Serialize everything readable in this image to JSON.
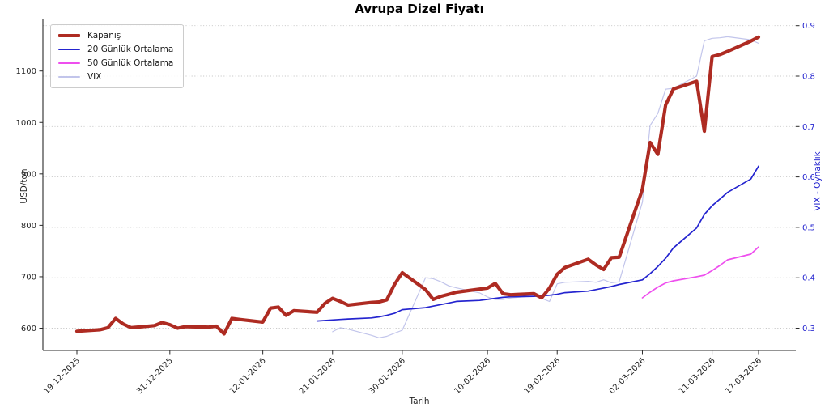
{
  "chart_data": {
    "type": "line",
    "title": "Avrupa Dizel Fiyatı",
    "xlabel": "Tarih",
    "ylabel_left": "USD/ton",
    "ylabel_right": "VIX - Oynaklık",
    "grid": "horizontal-dotted",
    "legend_position": "upper-left",
    "y_left_ticks": [
      600,
      700,
      800,
      900,
      1000,
      1100
    ],
    "y_right_ticks": [
      0.3,
      0.4,
      0.5,
      0.6,
      0.7,
      0.8,
      0.9
    ],
    "ylim_left": [
      560,
      1198
    ],
    "ylim_right": [
      0.255,
      0.912
    ],
    "x_tick_labels": [
      "19-12-2025",
      "31-12-2025",
      "12-01-2026",
      "21-01-2026",
      "30-01-2026",
      "10-02-2026",
      "19-02-2026",
      "02-03-2026",
      "11-03-2026",
      "17-03-2026"
    ],
    "colors": {
      "close": "#ae2b22",
      "ma20": "#2424cf",
      "ma50": "#ee4fee",
      "vix": "#8f96db",
      "right_axis_text": "#2323cf",
      "grid": "#c9c9c9",
      "spine": "#2a2a2a"
    },
    "series": [
      {
        "name": "Kapanış",
        "axis": "left",
        "color": "#ae2b22",
        "width": 4.2,
        "opacity": 1,
        "dates": [
          "19-12-2025",
          "22-12-2025",
          "23-12-2025",
          "24-12-2025",
          "25-12-2025",
          "26-12-2025",
          "29-12-2025",
          "30-12-2025",
          "31-12-2025",
          "01-01-2026",
          "02-01-2026",
          "05-01-2026",
          "06-01-2026",
          "07-01-2026",
          "08-01-2026",
          "09-01-2026",
          "12-01-2026",
          "13-01-2026",
          "14-01-2026",
          "15-01-2026",
          "16-01-2026",
          "19-01-2026",
          "20-01-2026",
          "21-01-2026",
          "22-01-2026",
          "23-01-2026",
          "26-01-2026",
          "27-01-2026",
          "28-01-2026",
          "29-01-2026",
          "30-01-2026",
          "02-02-2026",
          "03-02-2026",
          "04-02-2026",
          "05-02-2026",
          "06-02-2026",
          "09-02-2026",
          "10-02-2026",
          "11-02-2026",
          "12-02-2026",
          "13-02-2026",
          "16-02-2026",
          "17-02-2026",
          "18-02-2026",
          "19-02-2026",
          "20-02-2026",
          "23-02-2026",
          "24-02-2026",
          "25-02-2026",
          "26-02-2026",
          "27-02-2026",
          "02-03-2026",
          "03-03-2026",
          "04-03-2026",
          "05-03-2026",
          "06-03-2026",
          "09-03-2026",
          "10-03-2026",
          "11-03-2026",
          "12-03-2026",
          "13-03-2026",
          "16-03-2026",
          "17-03-2026"
        ],
        "values": [
          594,
          597,
          601,
          619,
          608,
          601,
          605,
          611,
          607,
          600,
          603,
          602,
          604,
          589,
          619,
          617,
          612,
          639,
          641,
          625,
          634,
          631,
          648,
          658,
          652,
          645,
          650,
          651,
          655,
          685,
          708,
          675,
          656,
          662,
          666,
          670,
          676,
          678,
          687,
          667,
          665,
          667,
          659,
          678,
          705,
          718,
          734,
          723,
          714,
          737,
          738,
          870,
          961,
          938,
          1034,
          1065,
          1080,
          983,
          1128,
          1132,
          1138,
          1158,
          1166
        ]
      },
      {
        "name": "20 Günlük Ortalama",
        "axis": "left",
        "color": "#2424cf",
        "width": 1.7,
        "opacity": 1,
        "dates": [
          "19-01-2026",
          "20-01-2026",
          "21-01-2026",
          "22-01-2026",
          "23-01-2026",
          "26-01-2026",
          "27-01-2026",
          "28-01-2026",
          "29-01-2026",
          "30-01-2026",
          "02-02-2026",
          "03-02-2026",
          "04-02-2026",
          "05-02-2026",
          "06-02-2026",
          "09-02-2026",
          "10-02-2026",
          "11-02-2026",
          "12-02-2026",
          "13-02-2026",
          "16-02-2026",
          "17-02-2026",
          "18-02-2026",
          "19-02-2026",
          "20-02-2026",
          "23-02-2026",
          "24-02-2026",
          "25-02-2026",
          "26-02-2026",
          "27-02-2026",
          "02-03-2026",
          "03-03-2026",
          "04-03-2026",
          "05-03-2026",
          "06-03-2026",
          "09-03-2026",
          "10-03-2026",
          "11-03-2026",
          "12-03-2026",
          "13-03-2026",
          "16-03-2026",
          "17-03-2026"
        ],
        "values": [
          614,
          615,
          616,
          617,
          618,
          620,
          622,
          625,
          629,
          636,
          640,
          643,
          646,
          649,
          652,
          654,
          656,
          658,
          660,
          661,
          662,
          663,
          664,
          666,
          669,
          672,
          675,
          678,
          681,
          685,
          694,
          706,
          720,
          736,
          756,
          795,
          821,
          838,
          851,
          864,
          890,
          915
        ]
      },
      {
        "name": "50 Günlük Ortalama",
        "axis": "left",
        "color": "#ee4fee",
        "width": 1.7,
        "opacity": 1,
        "dates": [
          "02-03-2026",
          "03-03-2026",
          "04-03-2026",
          "05-03-2026",
          "06-03-2026",
          "09-03-2026",
          "10-03-2026",
          "11-03-2026",
          "12-03-2026",
          "13-03-2026",
          "16-03-2026",
          "17-03-2026"
        ],
        "values": [
          659,
          670,
          680,
          688,
          692,
          700,
          703,
          712,
          722,
          733,
          744,
          758
        ]
      },
      {
        "name": "VIX",
        "axis": "right",
        "color": "#8f96db",
        "width": 1.2,
        "opacity": 0.55,
        "dates": [
          "21-01-2026",
          "22-01-2026",
          "23-01-2026",
          "26-01-2026",
          "27-01-2026",
          "28-01-2026",
          "29-01-2026",
          "30-01-2026",
          "02-02-2026",
          "03-02-2026",
          "04-02-2026",
          "05-02-2026",
          "06-02-2026",
          "09-02-2026",
          "10-02-2026",
          "11-02-2026",
          "12-02-2026",
          "13-02-2026",
          "16-02-2026",
          "17-02-2026",
          "18-02-2026",
          "19-02-2026",
          "20-02-2026",
          "23-02-2026",
          "24-02-2026",
          "25-02-2026",
          "26-02-2026",
          "27-02-2026",
          "02-03-2026",
          "03-03-2026",
          "04-03-2026",
          "05-03-2026",
          "06-03-2026",
          "09-03-2026",
          "10-03-2026",
          "11-03-2026",
          "12-03-2026",
          "13-03-2026",
          "16-03-2026",
          "17-03-2026"
        ],
        "values": [
          0.293,
          0.301,
          0.298,
          0.286,
          0.281,
          0.284,
          0.29,
          0.296,
          0.4,
          0.398,
          0.392,
          0.384,
          0.38,
          0.37,
          0.362,
          0.357,
          0.357,
          0.36,
          0.364,
          0.359,
          0.353,
          0.388,
          0.391,
          0.393,
          0.391,
          0.396,
          0.39,
          0.392,
          0.55,
          0.702,
          0.726,
          0.774,
          0.776,
          0.8,
          0.87,
          0.875,
          0.876,
          0.878,
          0.872,
          0.865
        ]
      }
    ]
  }
}
